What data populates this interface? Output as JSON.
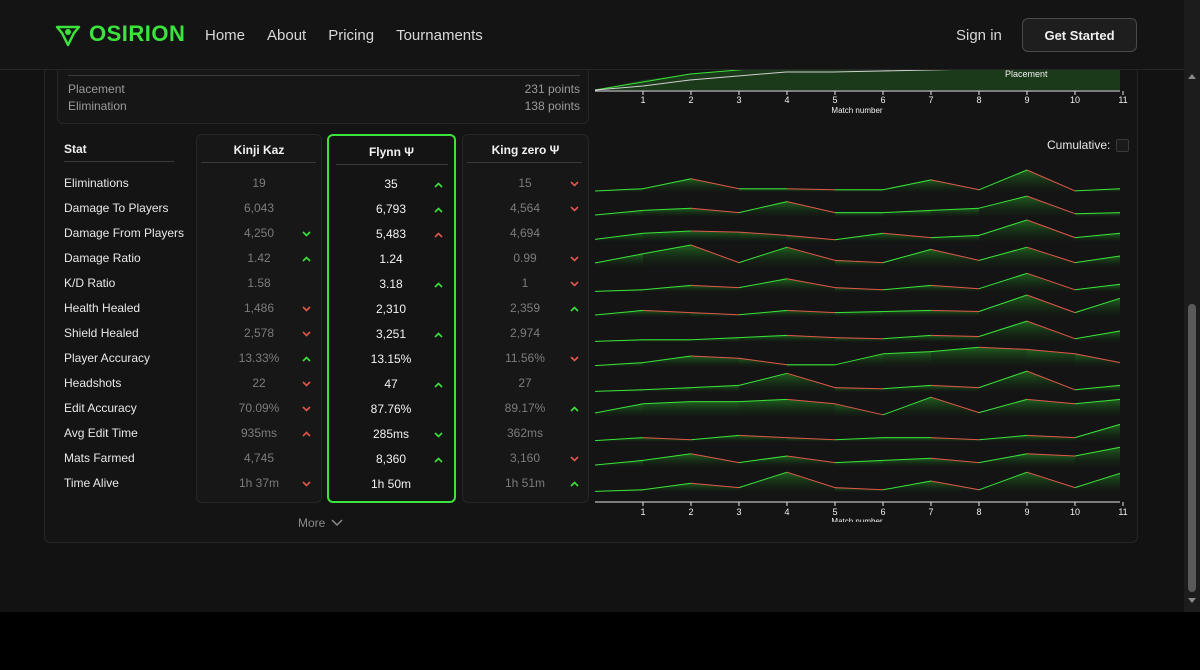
{
  "header": {
    "brand": "OSIRION",
    "nav": [
      "Home",
      "About",
      "Pricing",
      "Tournaments"
    ],
    "sign_in": "Sign in",
    "get_started": "Get Started"
  },
  "summary": {
    "rows": [
      {
        "label": "Placement",
        "value": "231 points"
      },
      {
        "label": "Elimination",
        "value": "138 points"
      }
    ]
  },
  "top_chart": {
    "legend": "Placement",
    "xlabel": "Match number",
    "ticks": [
      "1",
      "2",
      "3",
      "4",
      "5",
      "6",
      "7",
      "8",
      "9",
      "10",
      "11"
    ]
  },
  "table": {
    "stat_header": "Stat",
    "stats": [
      "Eliminations",
      "Damage To Players",
      "Damage From Players",
      "Damage Ratio",
      "K/D Ratio",
      "Health Healed",
      "Shield Healed",
      "Player Accuracy",
      "Headshots",
      "Edit Accuracy",
      "Avg Edit Time",
      "Mats Farmed",
      "Time Alive"
    ],
    "players": [
      {
        "name": "Kinji Kaz",
        "values": [
          "19",
          "6,043",
          "4,250",
          "1.42",
          "1.58",
          "1,486",
          "2,578",
          "13.33%",
          "22",
          "70.09%",
          "935ms",
          "4,745",
          "1h 37m"
        ],
        "arrows": [
          "",
          "",
          "down-green",
          "up",
          "",
          "down",
          "down",
          "up",
          "down",
          "down",
          "up-red",
          "",
          "down"
        ]
      },
      {
        "name": "Flynn Ψ",
        "values": [
          "35",
          "6,793",
          "5,483",
          "1.24",
          "3.18",
          "2,310",
          "3,251",
          "13.15%",
          "47",
          "87.76%",
          "285ms",
          "8,360",
          "1h 50m"
        ],
        "arrows": [
          "up",
          "up",
          "up-red",
          "",
          "up",
          "",
          "up",
          "",
          "up",
          "",
          "down-green",
          "up",
          ""
        ]
      },
      {
        "name": "King zero Ψ",
        "values": [
          "15",
          "4,564",
          "4,694",
          "0.99",
          "1",
          "2,359",
          "2,974",
          "11.56%",
          "27",
          "89.17%",
          "362ms",
          "3,160",
          "1h 51m"
        ],
        "arrows": [
          "down",
          "down",
          "",
          "down",
          "down",
          "up",
          "",
          "down",
          "",
          "up",
          "",
          "down",
          "up"
        ]
      }
    ],
    "more": "More"
  },
  "cumulative_label": "Cumulative:",
  "chart_data": {
    "type": "area",
    "title": "",
    "xlabel": "Match number",
    "x": [
      1,
      2,
      3,
      4,
      5,
      6,
      7,
      8,
      9,
      10,
      11
    ],
    "series": [
      {
        "values": [
          0.15,
          0.6,
          0.15,
          0.15,
          0.1,
          0.1,
          0.55,
          0.1,
          1.0,
          0.05,
          0.15
        ]
      },
      {
        "values": [
          0.3,
          0.4,
          0.2,
          0.7,
          0.2,
          0.2,
          0.3,
          0.4,
          0.95,
          0.15,
          0.2
        ]
      },
      {
        "values": [
          0.4,
          0.5,
          0.45,
          0.3,
          0.1,
          0.4,
          0.2,
          0.3,
          1.0,
          0.2,
          0.4
        ]
      },
      {
        "values": [
          0.6,
          1.0,
          0.2,
          0.9,
          0.3,
          0.2,
          0.8,
          0.3,
          0.9,
          0.2,
          0.5
        ]
      },
      {
        "values": [
          0.1,
          0.3,
          0.2,
          0.6,
          0.2,
          0.1,
          0.3,
          0.15,
          0.85,
          0.1,
          0.35
        ]
      },
      {
        "values": [
          0.3,
          0.2,
          0.1,
          0.3,
          0.2,
          0.25,
          0.3,
          0.25,
          1.0,
          0.2,
          0.85
        ]
      },
      {
        "values": [
          0.1,
          0.1,
          0.2,
          0.3,
          0.2,
          0.15,
          0.3,
          0.25,
          0.95,
          0.15,
          0.5
        ]
      },
      {
        "values": [
          0.2,
          0.5,
          0.4,
          0.1,
          0.1,
          0.6,
          0.7,
          0.9,
          0.8,
          0.6,
          0.2
        ]
      },
      {
        "values": [
          0.1,
          0.2,
          0.3,
          0.85,
          0.2,
          0.15,
          0.3,
          0.2,
          0.95,
          0.1,
          0.3
        ]
      },
      {
        "values": [
          0.6,
          0.7,
          0.7,
          0.8,
          0.6,
          0.1,
          0.9,
          0.2,
          0.8,
          0.6,
          0.8
        ]
      },
      {
        "values": [
          0.2,
          0.1,
          0.3,
          0.2,
          0.1,
          0.2,
          0.2,
          0.1,
          0.3,
          0.2,
          0.8
        ]
      },
      {
        "values": [
          0.3,
          0.6,
          0.2,
          0.5,
          0.2,
          0.3,
          0.4,
          0.2,
          0.6,
          0.5,
          0.9
        ]
      },
      {
        "values": [
          0.1,
          0.4,
          0.2,
          0.9,
          0.2,
          0.1,
          0.5,
          0.1,
          0.9,
          0.2,
          0.85
        ]
      }
    ],
    "colors": {
      "up": "#3be33b",
      "down": "#e0584a"
    }
  }
}
